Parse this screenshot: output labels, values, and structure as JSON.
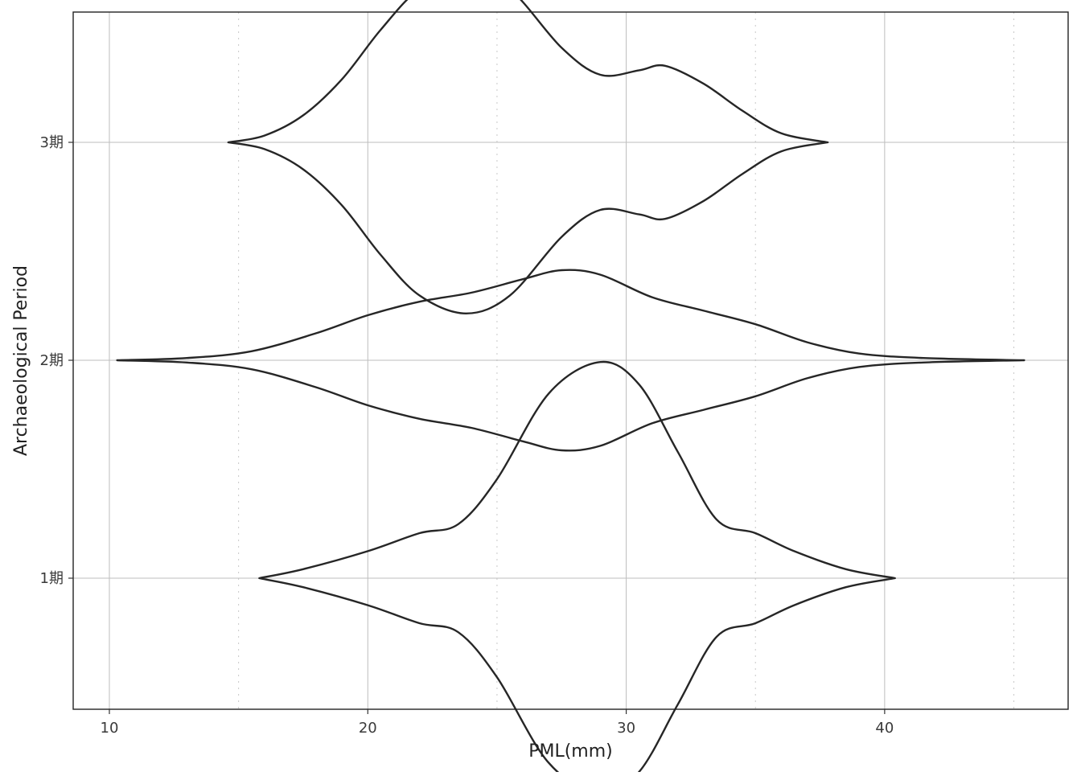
{
  "chart_data": {
    "type": "violin",
    "orientation": "horizontal",
    "xlabel": "PML(mm)",
    "ylabel": "Archaeological Period",
    "xlim": [
      8.6,
      47.1
    ],
    "x_major_ticks": [
      10,
      20,
      30,
      40
    ],
    "x_major_tick_labels": [
      "10",
      "20",
      "30",
      "40"
    ],
    "x_minor_grid": [
      15,
      25,
      35,
      45
    ],
    "categories": [
      "1期",
      "2期",
      "3期"
    ],
    "grid": true,
    "legend": "none",
    "series": [
      {
        "category": "1期",
        "range": [
          15.8,
          40.4
        ],
        "density_profile": [
          [
            15.8,
            0.0
          ],
          [
            17.5,
            0.02
          ],
          [
            20.0,
            0.06
          ],
          [
            22.0,
            0.1
          ],
          [
            23.5,
            0.12
          ],
          [
            25.0,
            0.22
          ],
          [
            27.0,
            0.41
          ],
          [
            29.0,
            0.48
          ],
          [
            30.5,
            0.43
          ],
          [
            32.0,
            0.28
          ],
          [
            33.5,
            0.13
          ],
          [
            35.0,
            0.1
          ],
          [
            36.5,
            0.06
          ],
          [
            38.5,
            0.02
          ],
          [
            40.4,
            0.0
          ]
        ]
      },
      {
        "category": "2期",
        "range": [
          10.3,
          45.4
        ],
        "density_profile": [
          [
            10.3,
            0.0
          ],
          [
            13.0,
            0.005
          ],
          [
            15.5,
            0.02
          ],
          [
            18.0,
            0.06
          ],
          [
            20.0,
            0.1
          ],
          [
            22.0,
            0.13
          ],
          [
            24.0,
            0.15
          ],
          [
            26.0,
            0.18
          ],
          [
            27.5,
            0.2
          ],
          [
            29.0,
            0.19
          ],
          [
            31.0,
            0.14
          ],
          [
            33.0,
            0.11
          ],
          [
            35.0,
            0.08
          ],
          [
            37.0,
            0.04
          ],
          [
            39.0,
            0.015
          ],
          [
            41.5,
            0.005
          ],
          [
            45.4,
            0.0
          ]
        ]
      },
      {
        "category": "3期",
        "range": [
          14.6,
          37.8
        ],
        "density_profile": [
          [
            14.6,
            0.0
          ],
          [
            16.0,
            0.015
          ],
          [
            17.5,
            0.06
          ],
          [
            19.0,
            0.14
          ],
          [
            20.5,
            0.25
          ],
          [
            22.0,
            0.34
          ],
          [
            23.8,
            0.38
          ],
          [
            25.5,
            0.34
          ],
          [
            27.5,
            0.21
          ],
          [
            29.0,
            0.15
          ],
          [
            30.5,
            0.16
          ],
          [
            31.5,
            0.17
          ],
          [
            33.0,
            0.13
          ],
          [
            34.5,
            0.07
          ],
          [
            36.0,
            0.02
          ],
          [
            37.8,
            0.0
          ]
        ]
      }
    ]
  }
}
